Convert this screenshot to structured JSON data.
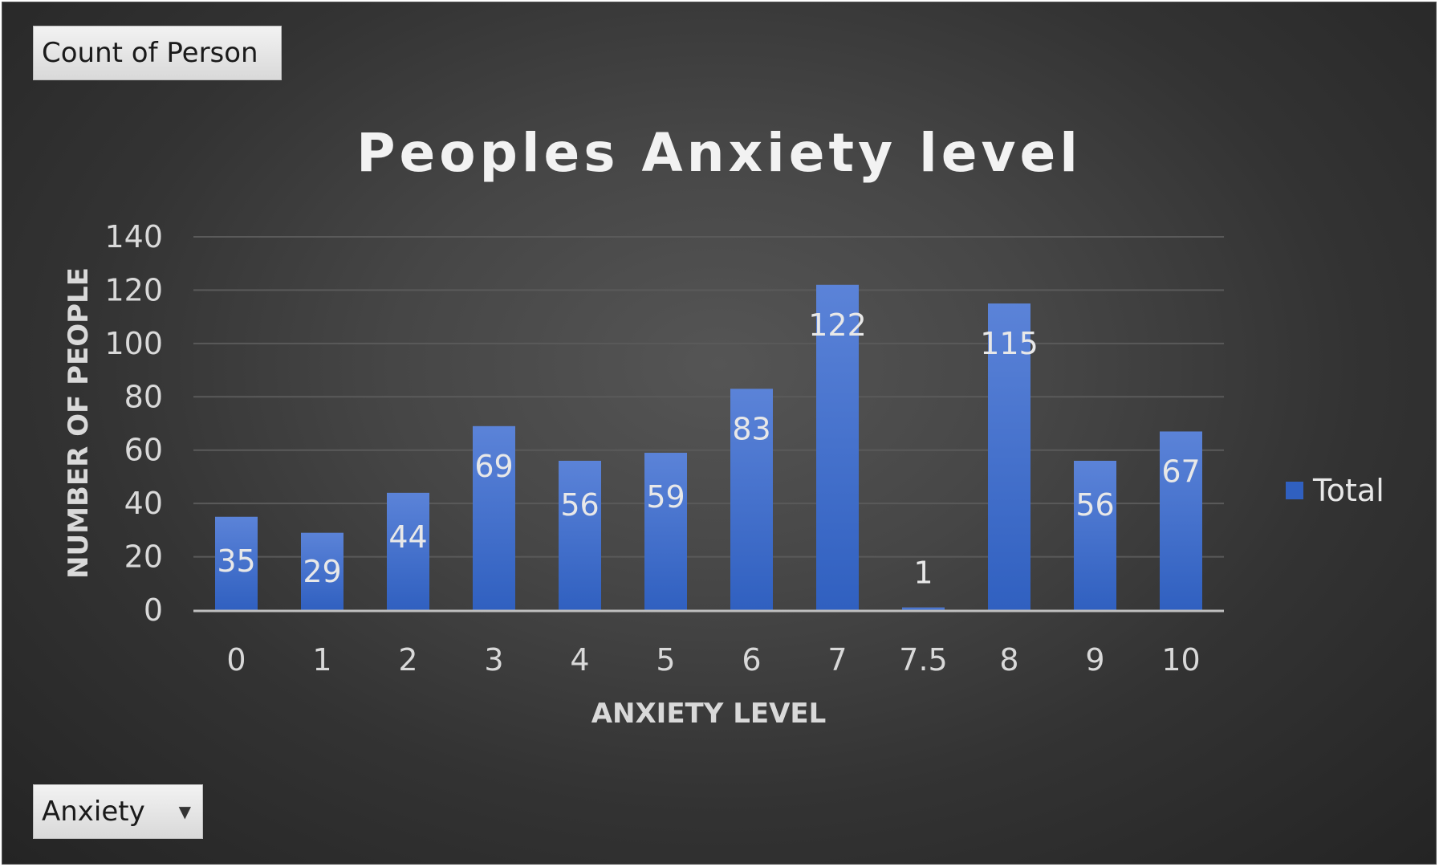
{
  "pivot": {
    "value_field": "Count of Person",
    "axis_field": "Anxiety"
  },
  "colors": {
    "bar_top": "#5b83d8",
    "bar_bottom": "#3060c0",
    "gridline": "#5a5a5a",
    "axis_line": "#bfbfbf"
  },
  "chart_data": {
    "type": "bar",
    "title": "Peoples Anxiety level",
    "xlabel": "ANXIETY LEVEL",
    "ylabel": "NUMBER OF PEOPLE",
    "categories": [
      "0",
      "1",
      "2",
      "3",
      "4",
      "5",
      "6",
      "7",
      "7.5",
      "8",
      "9",
      "10"
    ],
    "series": [
      {
        "name": "Total",
        "values": [
          35,
          29,
          44,
          69,
          56,
          59,
          83,
          122,
          1,
          115,
          56,
          67
        ]
      }
    ],
    "ylim": [
      0,
      140
    ],
    "yticks": [
      0,
      20,
      40,
      60,
      80,
      100,
      120,
      140
    ],
    "grid": true,
    "legend_position": "right",
    "data_labels": true
  }
}
